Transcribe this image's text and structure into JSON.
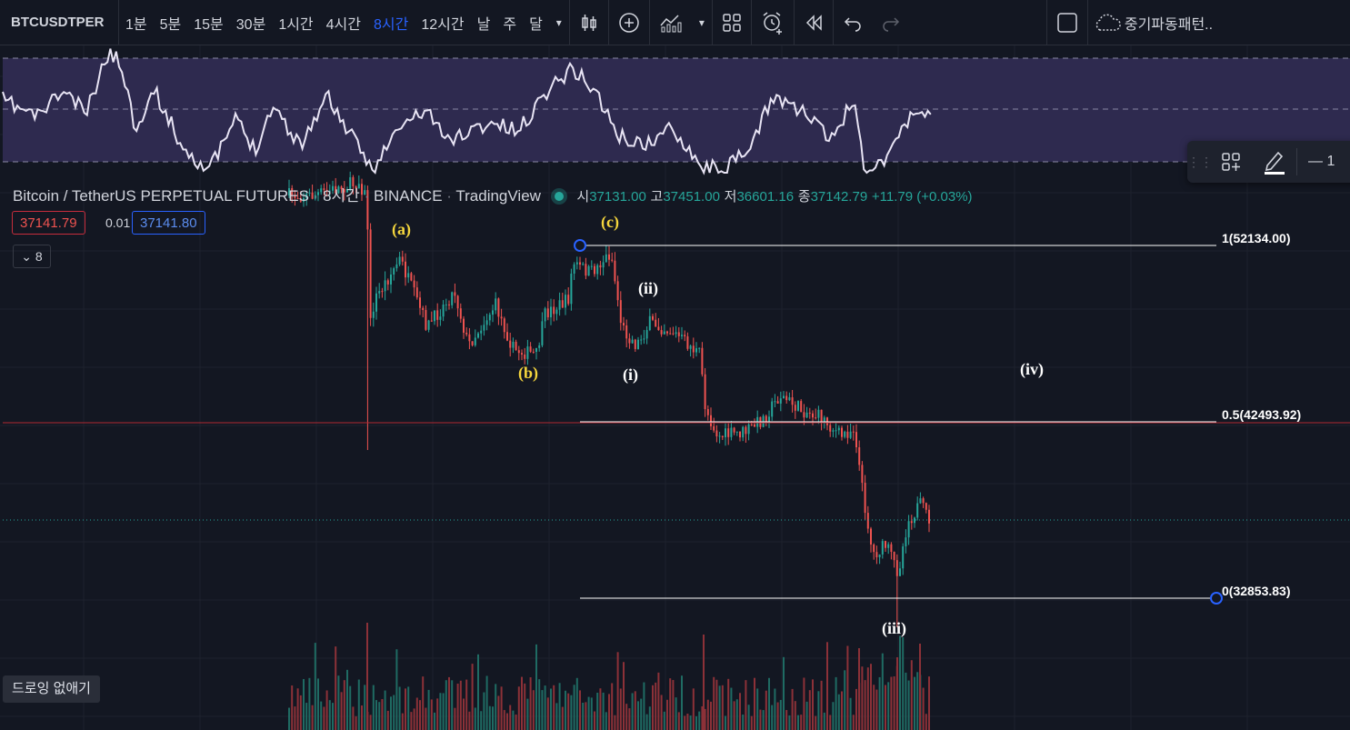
{
  "toolbar": {
    "symbol": "BTCUSDTPER",
    "intervals": [
      "1분",
      "5분",
      "15분",
      "30분",
      "1시간",
      "4시간",
      "8시간",
      "12시간",
      "날",
      "주",
      "달"
    ],
    "active_interval": "8시간",
    "pattern_label": "중기파동패턴.."
  },
  "legend": {
    "title": "Bitcoin / TetherUS PERPETUAL FUTURES",
    "interval": "8시간",
    "exchange": "BINANCE",
    "source": "TradingView",
    "separator": "·",
    "open_label": "시",
    "open": "37131.00",
    "high_label": "고",
    "high": "37451.00",
    "low_label": "저",
    "low": "36601.16",
    "close_label": "종",
    "close": "37142.79",
    "change": "+11.79 (+0.03%)"
  },
  "order": {
    "sell": "37141.79",
    "spread": "0.01",
    "buy": "37141.80"
  },
  "indicators_count": "8",
  "waves": {
    "a": "(a)",
    "b": "(b)",
    "c": "(c)",
    "i": "(i)",
    "ii": "(ii)",
    "iii": "(iii)",
    "iv": "(iv)"
  },
  "fib": {
    "level_1": "1(52134.00)",
    "level_05": "0.5(42493.92)",
    "level_0": "0(32853.83)"
  },
  "float_toolbar": {
    "value": "1"
  },
  "hide_drawings": "드로잉 없애기",
  "colors": {
    "bg": "#131722",
    "up": "#26a69a",
    "down": "#ef5350",
    "rsi_band": "#2e2a4f",
    "rsi_line": "#e8e4f4",
    "accent": "#2962ff",
    "wave_yellow": "#f5d63d"
  }
}
